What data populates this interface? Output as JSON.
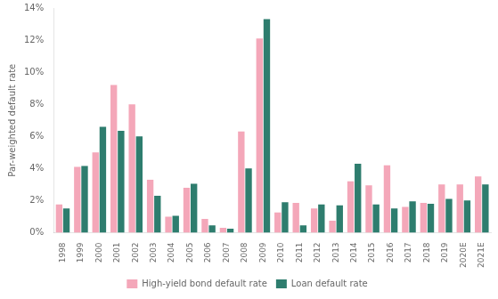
{
  "chart_data": {
    "type": "bar",
    "categories": [
      "1998",
      "1999",
      "2000",
      "2001",
      "2002",
      "2003",
      "2004",
      "2005",
      "2006",
      "2007",
      "2008",
      "2009",
      "2010",
      "2011",
      "2012",
      "2013",
      "2014",
      "2015",
      "2016",
      "2017",
      "2018",
      "2019",
      "2020E",
      "2021E"
    ],
    "series": [
      {
        "name": "High-yield bond default rate",
        "color": "#f4a7b9",
        "values": [
          1.75,
          4.1,
          5.0,
          9.2,
          8.0,
          3.3,
          1.0,
          2.8,
          0.85,
          0.3,
          6.3,
          12.1,
          1.25,
          1.85,
          1.5,
          0.75,
          3.2,
          2.95,
          4.2,
          1.6,
          1.85,
          3.0,
          3.0,
          3.5
        ]
      },
      {
        "name": "Loan default rate",
        "color": "#2e7d6e",
        "values": [
          1.5,
          4.15,
          6.6,
          6.35,
          6.0,
          2.3,
          1.05,
          3.05,
          0.45,
          0.25,
          4.0,
          13.3,
          1.9,
          0.45,
          1.75,
          1.7,
          4.3,
          1.75,
          1.5,
          1.95,
          1.8,
          2.1,
          2.0,
          3.0
        ]
      }
    ],
    "ylabel": "Par-weighted default rate",
    "ylim": [
      0,
      14
    ],
    "yticks": [
      {
        "value": 0,
        "label": "0%"
      },
      {
        "value": 2,
        "label": "2%"
      },
      {
        "value": 4,
        "label": "4%"
      },
      {
        "value": 6,
        "label": "6%"
      },
      {
        "value": 8,
        "label": "8%"
      },
      {
        "value": 10,
        "label": "10%"
      },
      {
        "value": 12,
        "label": "12%"
      },
      {
        "value": 14,
        "label": "14%"
      }
    ],
    "grid": false,
    "legend": "bottom"
  }
}
